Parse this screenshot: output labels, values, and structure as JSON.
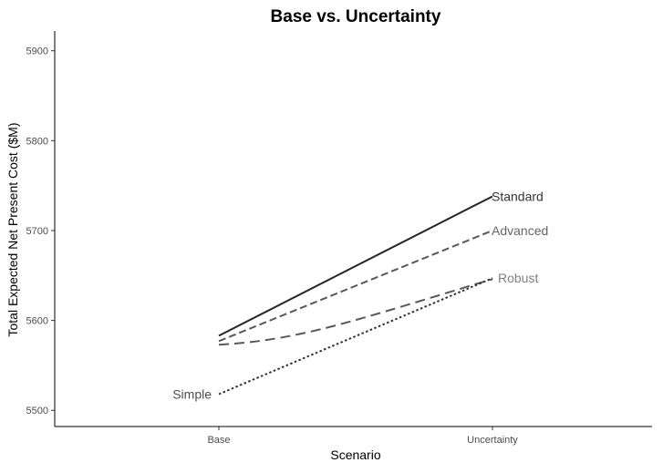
{
  "chart_data": {
    "type": "line",
    "title": "Base vs. Uncertainty",
    "xlabel": "Scenario",
    "ylabel": "Total Expected Net Present Cost ($M)",
    "categories": [
      "Base",
      "Uncertainty"
    ],
    "ylim": [
      5482,
      5922
    ],
    "yticks": [
      5500,
      5600,
      5700,
      5800,
      5900
    ],
    "grid": false,
    "legend": "direct labels at line ends",
    "series": [
      {
        "name": "Standard",
        "values": [
          5583,
          5738
        ],
        "label_at": "end",
        "dash": "solid",
        "color": "#262626",
        "label_color": "#333333"
      },
      {
        "name": "Advanced",
        "values": [
          5577,
          5700
        ],
        "label_at": "end",
        "dash": "dashed",
        "color": "#595959",
        "label_color": "#666666"
      },
      {
        "name": "Robust",
        "values": [
          5573,
          5646
        ],
        "label_at": "end",
        "dash": "longdash",
        "color": "#595959",
        "label_color": "#7f7f7f"
      },
      {
        "name": "Simple",
        "values": [
          5518,
          5647
        ],
        "label_at": "start",
        "dash": "dotted",
        "color": "#333333",
        "label_color": "#4d4d4d"
      }
    ]
  }
}
